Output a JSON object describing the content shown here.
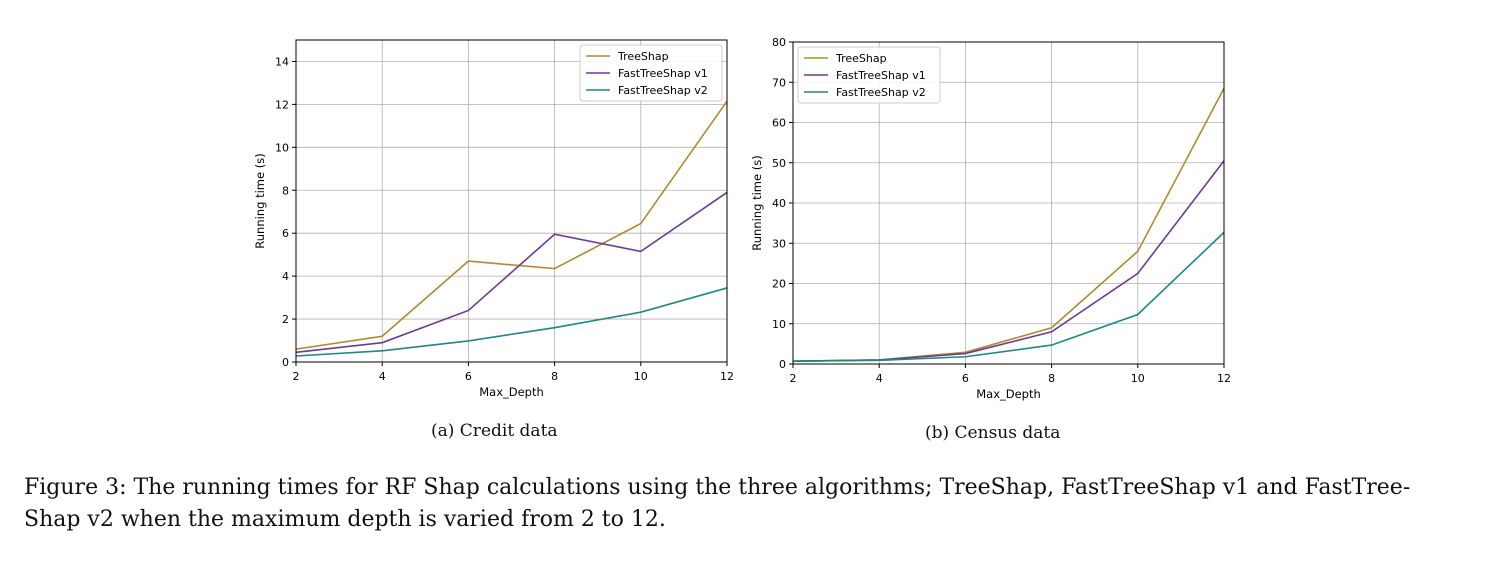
{
  "chart_data": [
    {
      "type": "line",
      "x": [
        2,
        4,
        6,
        8,
        10,
        12
      ],
      "xlabel": "Max_Depth",
      "ylabel": "Running time (s)",
      "xlim": [
        2,
        12
      ],
      "ylim": [
        0,
        15
      ],
      "xticks": [
        2,
        4,
        6,
        8,
        10,
        12
      ],
      "yticks": [
        0,
        2,
        4,
        6,
        8,
        10,
        12,
        14
      ],
      "grid": true,
      "legend_position": "top-right",
      "caption": "(a) Credit data",
      "series": [
        {
          "name": "TreeShap",
          "color": "#b08a2e",
          "values": [
            0.6,
            1.2,
            4.7,
            4.35,
            6.45,
            12.15
          ]
        },
        {
          "name": "FastTreeShap v1",
          "color": "#6b3a96",
          "values": [
            0.45,
            0.9,
            2.4,
            5.95,
            5.15,
            7.9
          ]
        },
        {
          "name": "FastTreeShap v2",
          "color": "#1b8a80",
          "values": [
            0.28,
            0.52,
            0.98,
            1.6,
            2.32,
            3.45
          ]
        }
      ]
    },
    {
      "type": "line",
      "x": [
        2,
        4,
        6,
        8,
        10,
        12
      ],
      "xlabel": "Max_Depth",
      "ylabel": "Running time (s)",
      "xlim": [
        2,
        12
      ],
      "ylim": [
        0,
        80
      ],
      "xticks": [
        2,
        4,
        6,
        8,
        10,
        12
      ],
      "yticks": [
        0,
        10,
        20,
        30,
        40,
        50,
        60,
        70,
        80
      ],
      "grid": true,
      "legend_position": "top-left",
      "caption": "(b) Census data",
      "series": [
        {
          "name": "TreeShap",
          "color": "#b08a2e",
          "values": [
            0.7,
            1.0,
            2.9,
            9.0,
            28.0,
            68.5
          ]
        },
        {
          "name": "FastTreeShap v1",
          "color": "#6b3a96",
          "values": [
            0.7,
            1.0,
            2.6,
            8.0,
            22.5,
            50.5
          ]
        },
        {
          "name": "FastTreeShap v2",
          "color": "#1b8a80",
          "values": [
            0.7,
            0.9,
            1.8,
            4.7,
            12.3,
            32.7
          ]
        }
      ]
    }
  ],
  "figure_caption": "Figure 3: The running times for RF Shap calculations using the three algorithms; TreeShap, FastTreeShap v1 and FastTree-Shap v2 when the maximum depth is varied from 2 to 12."
}
